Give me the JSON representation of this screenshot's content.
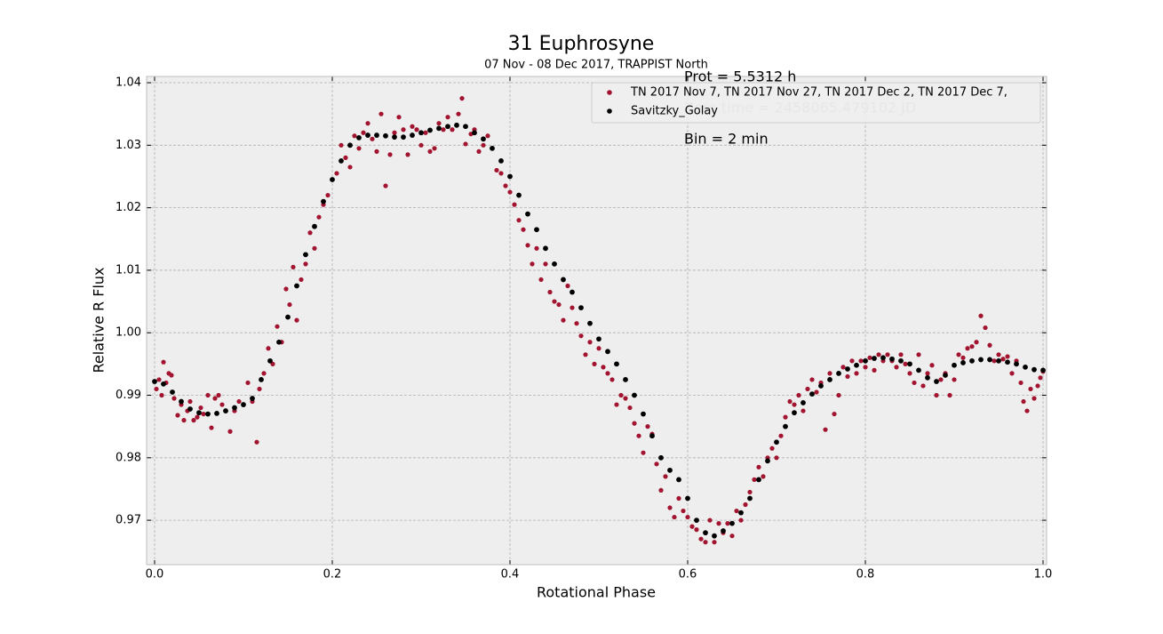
{
  "chart_data": {
    "type": "scatter",
    "title": "31 Euphrosyne",
    "subtitle": "07 Nov - 08 Dec 2017, TRAPPIST North",
    "x_label": "Rotational Phase",
    "y_label": "Relative R Flux",
    "annotations": [
      "Prot = 5.5312 h",
      "Zero time = 2458065.479102 JD",
      "Bin = 2 min"
    ],
    "xlim": [
      -0.009,
      1.004
    ],
    "ylim": [
      0.9629,
      1.041
    ],
    "xticks": [
      {
        "value": 0,
        "label": "0.0"
      },
      0.2,
      0.4,
      0.6,
      0.8,
      {
        "value": 1,
        "label": "1.0"
      }
    ],
    "yticks": [
      0.97,
      0.98,
      0.99,
      {
        "value": 1,
        "label": "1.00"
      },
      1.01,
      1.02,
      1.03,
      1.04
    ],
    "grid": true,
    "legend": "upper right",
    "series": [
      {
        "name": "TN 2017 Nov 7, TN 2017 Nov 27, TN 2017 Dec 2, TN 2017 Dec 7,",
        "color": "#a2142f",
        "x": [
          0.002,
          0.005,
          0.008,
          0.01,
          0.013,
          0.016,
          0.019,
          0.022,
          0.026,
          0.03,
          0.033,
          0.037,
          0.04,
          0.044,
          0.048,
          0.052,
          0.055,
          0.06,
          0.064,
          0.068,
          0.072,
          0.076,
          0.08,
          0.085,
          0.09,
          0.095,
          0.1,
          0.105,
          0.11,
          0.115,
          0.118,
          0.123,
          0.128,
          0.133,
          0.138,
          0.143,
          0.148,
          0.152,
          0.156,
          0.16,
          0.165,
          0.17,
          0.175,
          0.18,
          0.185,
          0.19,
          0.195,
          0.2,
          0.205,
          0.21,
          0.215,
          0.22,
          0.225,
          0.23,
          0.235,
          0.24,
          0.245,
          0.25,
          0.255,
          0.26,
          0.265,
          0.27,
          0.275,
          0.28,
          0.285,
          0.29,
          0.295,
          0.3,
          0.305,
          0.31,
          0.315,
          0.32,
          0.325,
          0.33,
          0.335,
          0.342,
          0.346,
          0.35,
          0.356,
          0.36,
          0.365,
          0.37,
          0.375,
          0.38,
          0.385,
          0.39,
          0.395,
          0.4,
          0.405,
          0.41,
          0.415,
          0.42,
          0.425,
          0.43,
          0.435,
          0.44,
          0.445,
          0.45,
          0.455,
          0.46,
          0.465,
          0.47,
          0.475,
          0.48,
          0.485,
          0.49,
          0.495,
          0.5,
          0.505,
          0.51,
          0.515,
          0.52,
          0.525,
          0.53,
          0.535,
          0.54,
          0.545,
          0.55,
          0.555,
          0.56,
          0.565,
          0.57,
          0.575,
          0.58,
          0.585,
          0.59,
          0.595,
          0.6,
          0.605,
          0.61,
          0.615,
          0.62,
          0.625,
          0.63,
          0.635,
          0.64,
          0.645,
          0.65,
          0.655,
          0.66,
          0.665,
          0.67,
          0.675,
          0.68,
          0.685,
          0.69,
          0.695,
          0.7,
          0.705,
          0.71,
          0.715,
          0.72,
          0.725,
          0.73,
          0.735,
          0.74,
          0.745,
          0.75,
          0.755,
          0.76,
          0.765,
          0.77,
          0.775,
          0.78,
          0.785,
          0.79,
          0.795,
          0.8,
          0.805,
          0.81,
          0.815,
          0.82,
          0.825,
          0.83,
          0.835,
          0.84,
          0.845,
          0.85,
          0.855,
          0.86,
          0.865,
          0.87,
          0.875,
          0.88,
          0.885,
          0.89,
          0.895,
          0.9,
          0.905,
          0.91,
          0.915,
          0.92,
          0.925,
          0.93,
          0.935,
          0.94,
          0.945,
          0.95,
          0.955,
          0.96,
          0.965,
          0.97,
          0.975,
          0.978,
          0.982,
          0.986,
          0.99,
          0.994,
          0.997,
          1.0
        ],
        "values": [
          0.991,
          0.9925,
          0.99,
          0.9953,
          0.992,
          0.9935,
          0.9932,
          0.9895,
          0.9868,
          0.9885,
          0.986,
          0.9875,
          0.989,
          0.986,
          0.9865,
          0.988,
          0.987,
          0.99,
          0.9848,
          0.9895,
          0.99,
          0.9885,
          0.9875,
          0.9842,
          0.9875,
          0.989,
          0.9885,
          0.992,
          0.989,
          0.9825,
          0.991,
          0.9935,
          0.9975,
          0.995,
          1.001,
          0.9985,
          1.007,
          1.0045,
          1.0105,
          1.002,
          1.0085,
          1.011,
          1.016,
          1.0135,
          1.0185,
          1.0205,
          1.022,
          1.0245,
          1.0255,
          1.03,
          1.028,
          1.0265,
          1.0315,
          1.0295,
          1.032,
          1.0335,
          1.031,
          1.029,
          1.035,
          1.0235,
          1.0285,
          1.032,
          1.0345,
          1.0325,
          1.0285,
          1.033,
          1.0325,
          1.03,
          1.032,
          1.029,
          1.0295,
          1.0335,
          1.0325,
          1.0345,
          1.0325,
          1.035,
          1.0375,
          1.0302,
          1.0318,
          1.0325,
          1.029,
          1.03,
          1.0315,
          1.0295,
          1.026,
          1.0255,
          1.0235,
          1.0225,
          1.0205,
          1.018,
          1.0165,
          1.014,
          1.011,
          1.0135,
          1.0085,
          1.011,
          1.0065,
          1.005,
          1.0045,
          1.002,
          1.0075,
          1.004,
          1.0015,
          0.9995,
          0.9965,
          0.9985,
          0.995,
          0.9975,
          0.9945,
          0.9935,
          0.9925,
          0.9885,
          0.99,
          0.9895,
          0.988,
          0.9855,
          0.9835,
          0.9808,
          0.985,
          0.9838,
          0.979,
          0.9748,
          0.977,
          0.972,
          0.9705,
          0.9735,
          0.9715,
          0.9705,
          0.969,
          0.9685,
          0.967,
          0.9665,
          0.97,
          0.9665,
          0.9695,
          0.968,
          0.9695,
          0.9675,
          0.9715,
          0.97,
          0.9725,
          0.9745,
          0.9765,
          0.9785,
          0.977,
          0.98,
          0.9815,
          0.98,
          0.9835,
          0.9865,
          0.989,
          0.9885,
          0.99,
          0.9875,
          0.991,
          0.9925,
          0.9905,
          0.992,
          0.9845,
          0.9935,
          0.987,
          0.99,
          0.9945,
          0.993,
          0.9955,
          0.9935,
          0.9955,
          0.9945,
          0.996,
          0.994,
          0.9965,
          0.9955,
          0.9965,
          0.9955,
          0.9945,
          0.9965,
          0.995,
          0.9935,
          0.992,
          0.9965,
          0.9915,
          0.9935,
          0.9948,
          0.99,
          0.9925,
          0.9935,
          0.99,
          0.9925,
          0.9965,
          0.996,
          0.9975,
          0.9978,
          0.9985,
          1.0027,
          1.0008,
          0.998,
          0.9955,
          0.9965,
          0.9958,
          0.9962,
          0.9935,
          0.9955,
          0.992,
          0.989,
          0.9875,
          0.991,
          0.9895,
          0.9915,
          0.9928,
          0.9938
        ]
      },
      {
        "name": "Savitzky_Golay",
        "color": "#000000",
        "x": [
          0,
          0.01,
          0.02,
          0.03,
          0.04,
          0.05,
          0.06,
          0.07,
          0.08,
          0.09,
          0.1,
          0.11,
          0.12,
          0.13,
          0.14,
          0.15,
          0.16,
          0.17,
          0.18,
          0.19,
          0.2,
          0.21,
          0.22,
          0.23,
          0.24,
          0.25,
          0.26,
          0.27,
          0.28,
          0.29,
          0.3,
          0.31,
          0.32,
          0.33,
          0.34,
          0.35,
          0.36,
          0.37,
          0.38,
          0.39,
          0.4,
          0.41,
          0.42,
          0.43,
          0.44,
          0.45,
          0.46,
          0.47,
          0.48,
          0.49,
          0.5,
          0.51,
          0.52,
          0.53,
          0.54,
          0.55,
          0.56,
          0.57,
          0.58,
          0.59,
          0.6,
          0.61,
          0.62,
          0.63,
          0.64,
          0.65,
          0.66,
          0.67,
          0.68,
          0.69,
          0.7,
          0.71,
          0.72,
          0.73,
          0.74,
          0.75,
          0.76,
          0.77,
          0.78,
          0.79,
          0.8,
          0.81,
          0.82,
          0.83,
          0.84,
          0.85,
          0.86,
          0.87,
          0.88,
          0.89,
          0.9,
          0.91,
          0.92,
          0.93,
          0.94,
          0.95,
          0.96,
          0.97,
          0.98,
          0.99,
          1
        ],
        "values": [
          0.9922,
          0.9918,
          0.9905,
          0.989,
          0.9878,
          0.9872,
          0.987,
          0.9871,
          0.9875,
          0.988,
          0.9885,
          0.9895,
          0.9925,
          0.9955,
          0.9985,
          1.0025,
          1.0075,
          1.0125,
          1.017,
          1.021,
          1.0245,
          1.0275,
          1.03,
          1.0312,
          1.0316,
          1.0316,
          1.0315,
          1.0313,
          1.0313,
          1.0316,
          1.032,
          1.0324,
          1.0327,
          1.033,
          1.0332,
          1.033,
          1.032,
          1.031,
          1.0295,
          1.0275,
          1.025,
          1.022,
          1.019,
          1.0165,
          1.0135,
          1.011,
          1.0085,
          1.0065,
          1.004,
          1.0015,
          0.999,
          0.997,
          0.995,
          0.9925,
          0.99,
          0.987,
          0.9835,
          0.98,
          0.978,
          0.9765,
          0.9735,
          0.97,
          0.968,
          0.9675,
          0.9683,
          0.9695,
          0.9712,
          0.9735,
          0.9765,
          0.9795,
          0.9825,
          0.985,
          0.9872,
          0.9888,
          0.9902,
          0.9915,
          0.9925,
          0.9935,
          0.9942,
          0.9948,
          0.9955,
          0.9959,
          0.996,
          0.9958,
          0.9955,
          0.995,
          0.994,
          0.9928,
          0.9922,
          0.9932,
          0.9948,
          0.9952,
          0.9955,
          0.9957,
          0.9957,
          0.9955,
          0.9953,
          0.995,
          0.9945,
          0.9941,
          0.994
        ]
      }
    ]
  }
}
